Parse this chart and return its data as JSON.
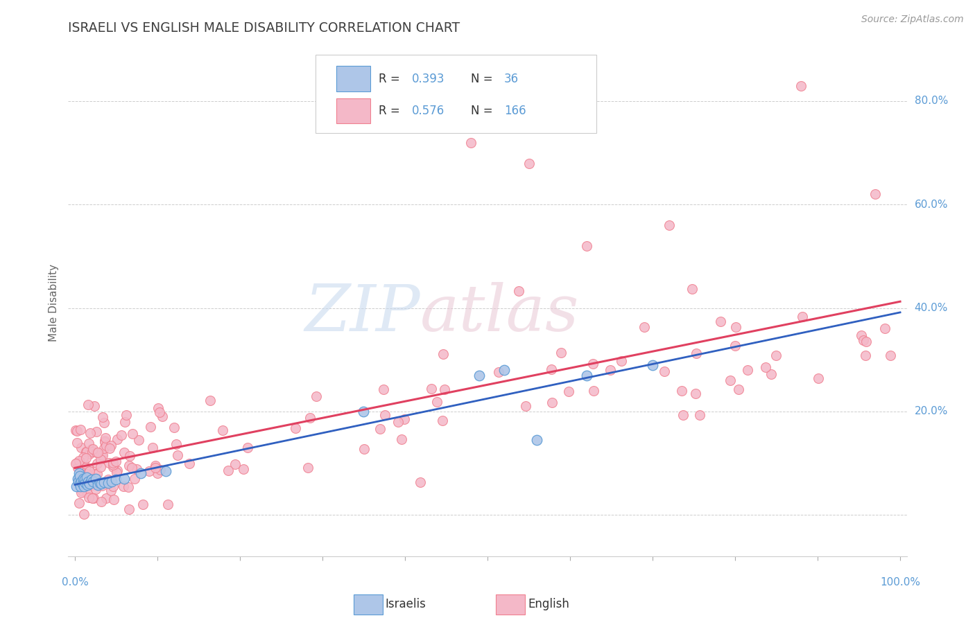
{
  "title": "ISRAELI VS ENGLISH MALE DISABILITY CORRELATION CHART",
  "source": "Source: ZipAtlas.com",
  "ylabel": "Male Disability",
  "israeli_color": "#aec6e8",
  "english_color": "#f4b8c8",
  "israeli_edge": "#5b9bd5",
  "english_edge": "#f08090",
  "trend_israeli_color": "#3060c0",
  "trend_english_color": "#e04060",
  "R_israeli": 0.393,
  "N_israeli": 36,
  "R_english": 0.576,
  "N_english": 166,
  "background_color": "#ffffff",
  "grid_color": "#c8c8c8",
  "title_color": "#404040",
  "axis_color": "#5b9bd5"
}
